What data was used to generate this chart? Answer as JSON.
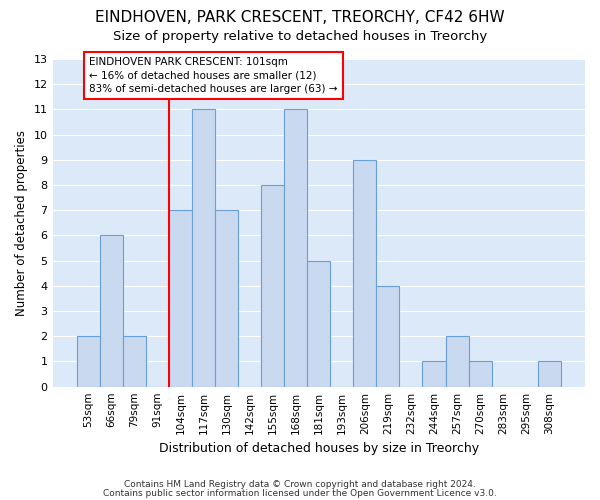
{
  "title1": "EINDHOVEN, PARK CRESCENT, TREORCHY, CF42 6HW",
  "title2": "Size of property relative to detached houses in Treorchy",
  "xlabel": "Distribution of detached houses by size in Treorchy",
  "ylabel": "Number of detached properties",
  "categories": [
    "53sqm",
    "66sqm",
    "79sqm",
    "91sqm",
    "104sqm",
    "117sqm",
    "130sqm",
    "142sqm",
    "155sqm",
    "168sqm",
    "181sqm",
    "193sqm",
    "206sqm",
    "219sqm",
    "232sqm",
    "244sqm",
    "257sqm",
    "270sqm",
    "283sqm",
    "295sqm",
    "308sqm"
  ],
  "values": [
    2,
    6,
    2,
    0,
    7,
    11,
    7,
    0,
    8,
    11,
    5,
    0,
    9,
    4,
    0,
    1,
    2,
    1,
    0,
    0,
    1
  ],
  "bar_color": "#c9d9f0",
  "bar_edge_color": "#6a9fd8",
  "red_line_index": 4,
  "annotation_lines": [
    "EINDHOVEN PARK CRESCENT: 101sqm",
    "← 16% of detached houses are smaller (12)",
    "83% of semi-detached houses are larger (63) →"
  ],
  "ylim": [
    0,
    13
  ],
  "yticks": [
    0,
    1,
    2,
    3,
    4,
    5,
    6,
    7,
    8,
    9,
    10,
    11,
    12,
    13
  ],
  "footer1": "Contains HM Land Registry data © Crown copyright and database right 2024.",
  "footer2": "Contains public sector information licensed under the Open Government Licence v3.0.",
  "fig_bg_color": "#ffffff",
  "plot_bg_color": "#dce9f8",
  "grid_color": "#ffffff",
  "title1_fontsize": 11,
  "title2_fontsize": 9.5,
  "tick_fontsize": 7.5,
  "ylabel_fontsize": 8.5,
  "xlabel_fontsize": 9,
  "footer_fontsize": 6.5
}
